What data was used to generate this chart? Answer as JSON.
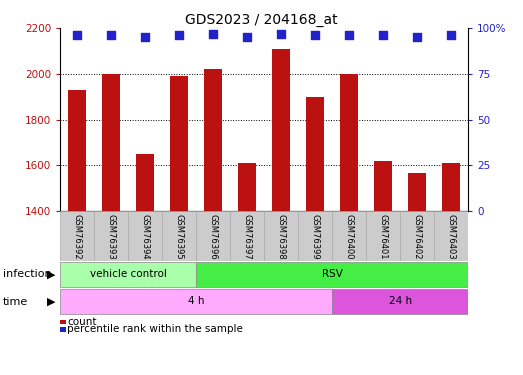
{
  "title": "GDS2023 / 204168_at",
  "samples": [
    "GSM76392",
    "GSM76393",
    "GSM76394",
    "GSM76395",
    "GSM76396",
    "GSM76397",
    "GSM76398",
    "GSM76399",
    "GSM76400",
    "GSM76401",
    "GSM76402",
    "GSM76403"
  ],
  "counts": [
    1930,
    2000,
    1650,
    1990,
    2020,
    1610,
    2110,
    1900,
    2000,
    1620,
    1565,
    1610
  ],
  "percentile_ranks": [
    96,
    96,
    95,
    96,
    97,
    95,
    97,
    96,
    96,
    96,
    95,
    96
  ],
  "ylim_left": [
    1400,
    2200
  ],
  "ylim_right": [
    0,
    100
  ],
  "yticks_left": [
    1400,
    1600,
    1800,
    2000,
    2200
  ],
  "yticks_right": [
    0,
    25,
    50,
    75,
    100
  ],
  "bar_color": "#bb1111",
  "dot_color": "#2222cc",
  "infection_groups": [
    {
      "label": "vehicle control",
      "start": 0,
      "end": 3,
      "color": "#aaffaa"
    },
    {
      "label": "RSV",
      "start": 4,
      "end": 11,
      "color": "#44ee44"
    }
  ],
  "time_groups": [
    {
      "label": "4 h",
      "start": 0,
      "end": 7,
      "color": "#ffaaff"
    },
    {
      "label": "24 h",
      "start": 8,
      "end": 11,
      "color": "#dd55dd"
    }
  ],
  "infection_label": "infection",
  "time_label": "time",
  "legend_count_label": "count",
  "legend_percentile_label": "percentile rank within the sample",
  "bar_width": 0.55,
  "dot_size": 40,
  "background_color": "#ffffff",
  "title_fontsize": 10,
  "tick_fontsize": 7.5,
  "label_fontsize": 8,
  "sample_fontsize": 6,
  "grid_yticks": [
    1600,
    1800,
    2000
  ]
}
